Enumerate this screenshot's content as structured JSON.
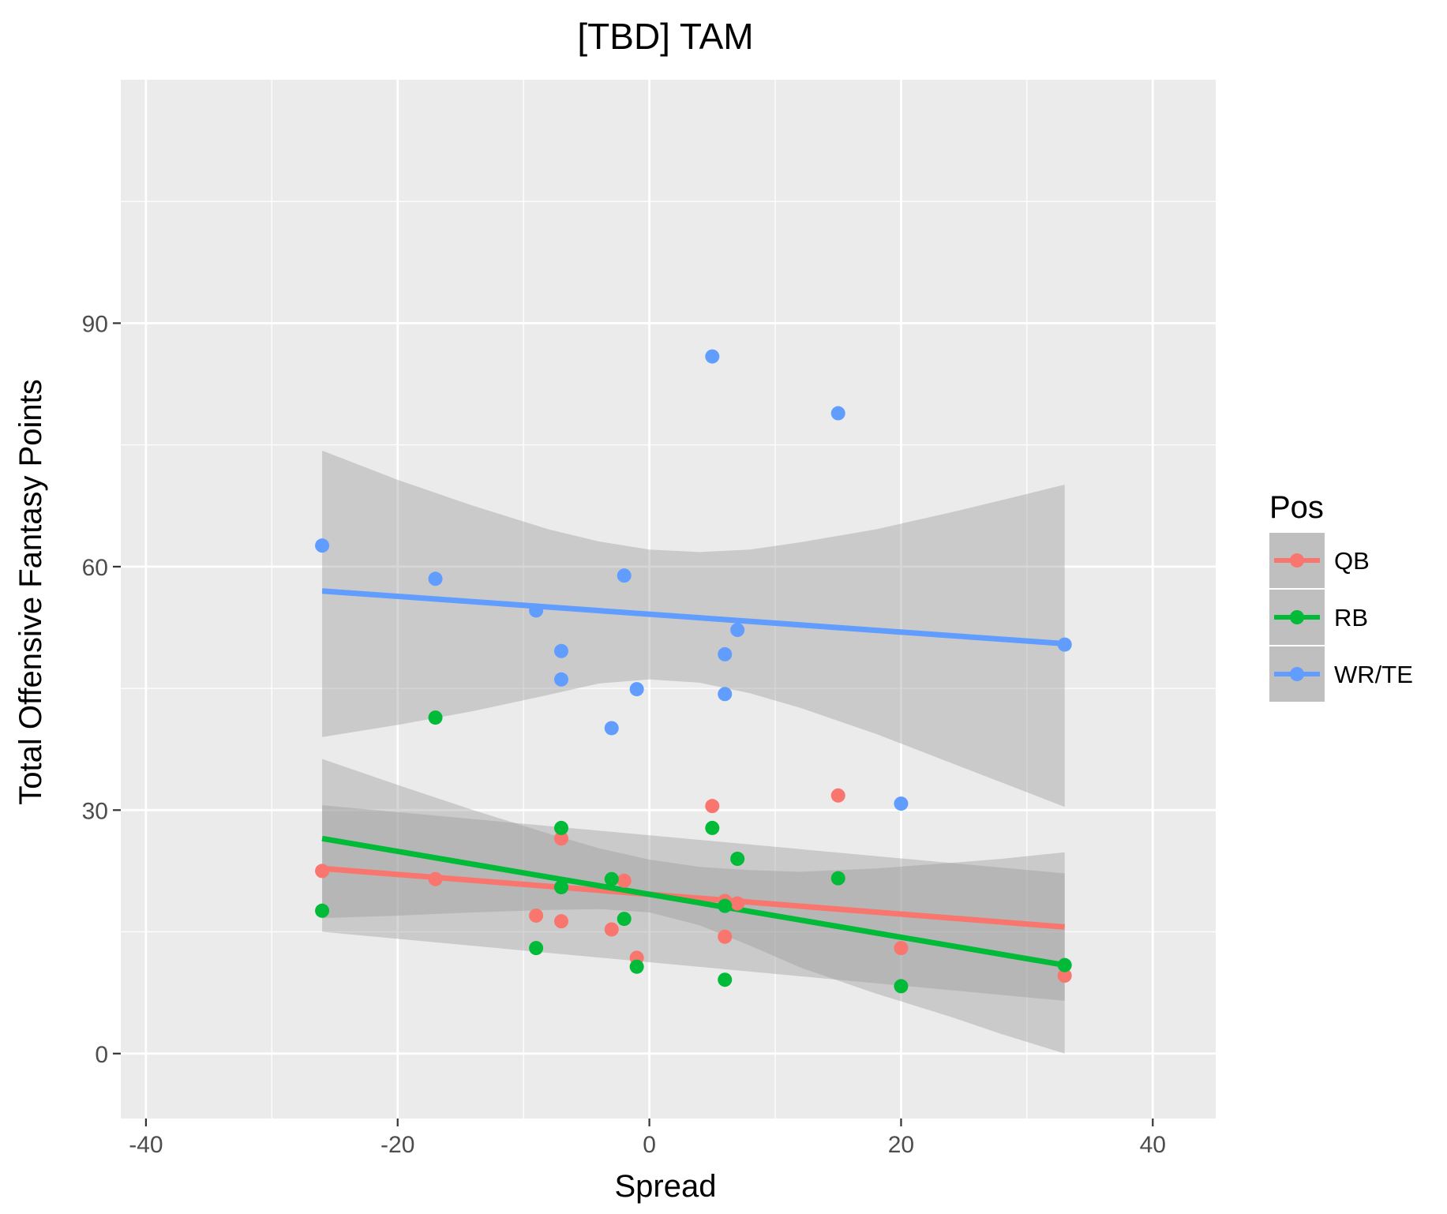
{
  "chart_data": {
    "type": "scatter",
    "title": "[TBD] TAM",
    "xlabel": "Spread",
    "ylabel": "Total Offensive Fantasy Points",
    "xlim": [
      -42,
      45
    ],
    "ylim": [
      -8,
      120
    ],
    "x_ticks": [
      -40,
      -20,
      0,
      20,
      40
    ],
    "x_minor": [
      -30,
      -10,
      10,
      30
    ],
    "y_ticks": [
      0,
      30,
      60,
      90
    ],
    "y_minor": [
      15,
      45,
      75,
      105
    ],
    "grid": true,
    "legend": {
      "title": "Pos",
      "position": "right",
      "entries": [
        "QB",
        "RB",
        "WR/TE"
      ]
    },
    "series": [
      {
        "name": "QB",
        "color": "#F8766D",
        "points": [
          [
            -26,
            22.5
          ],
          [
            -17,
            21.5
          ],
          [
            -9,
            17
          ],
          [
            -7,
            26.5
          ],
          [
            -7,
            16.3
          ],
          [
            -3,
            15.3
          ],
          [
            -2,
            21.3
          ],
          [
            -1,
            11.8
          ],
          [
            5,
            30.5
          ],
          [
            6,
            18.8
          ],
          [
            6,
            14.4
          ],
          [
            7,
            18.5
          ],
          [
            15,
            31.8
          ],
          [
            20,
            13
          ],
          [
            33,
            9.6
          ]
        ],
        "fit": {
          "x": [
            -26,
            33
          ],
          "y": [
            22.8,
            15.6
          ]
        },
        "band": {
          "x": [
            -26,
            33
          ],
          "upper": [
            30.6,
            22.2
          ],
          "lower": [
            15.0,
            6.5
          ]
        }
      },
      {
        "name": "RB",
        "color": "#00BA38",
        "points": [
          [
            -26,
            17.6
          ],
          [
            -17,
            41.4
          ],
          [
            -9,
            13
          ],
          [
            -7,
            27.8
          ],
          [
            -7,
            20.5
          ],
          [
            -3,
            21.5
          ],
          [
            -2,
            16.6
          ],
          [
            -1,
            10.7
          ],
          [
            5,
            27.8
          ],
          [
            6,
            9.1
          ],
          [
            6,
            18.2
          ],
          [
            7,
            24
          ],
          [
            15,
            21.6
          ],
          [
            20,
            8.3
          ],
          [
            33,
            10.9
          ]
        ],
        "fit": {
          "x": [
            -26,
            33
          ],
          "y": [
            26.5,
            10.9
          ]
        },
        "band": {
          "x": [
            -26,
            -20,
            -14,
            -8,
            -4,
            0,
            4,
            8,
            12,
            18,
            24,
            28,
            33
          ],
          "upper": [
            36.3,
            33.1,
            30.0,
            27.1,
            25.3,
            23.9,
            23.0,
            22.6,
            22.4,
            22.8,
            23.5,
            24.0,
            24.8
          ],
          "lower": [
            16.7,
            17.0,
            17.4,
            17.7,
            17.8,
            17.4,
            15.8,
            13.3,
            10.6,
            7.4,
            4.5,
            2.4,
            0
          ]
        }
      },
      {
        "name": "WR/TE",
        "color": "#619CFF",
        "points": [
          [
            -26,
            62.6
          ],
          [
            -17,
            58.5
          ],
          [
            -9,
            54.6
          ],
          [
            -7,
            49.6
          ],
          [
            -7,
            46.1
          ],
          [
            -3,
            40.1
          ],
          [
            -2,
            58.9
          ],
          [
            -1,
            44.9
          ],
          [
            5,
            85.9
          ],
          [
            6,
            44.3
          ],
          [
            6,
            49.2
          ],
          [
            7,
            52.2
          ],
          [
            15,
            78.9
          ],
          [
            20,
            30.8
          ],
          [
            33,
            50.4
          ]
        ],
        "fit": {
          "x": [
            -26,
            33
          ],
          "y": [
            57,
            50.5
          ]
        },
        "band": {
          "x": [
            -26,
            -20,
            -14,
            -8,
            -4,
            0,
            4,
            8,
            12,
            18,
            24,
            28,
            33
          ],
          "upper": [
            74.3,
            70.7,
            67.5,
            64.6,
            63.1,
            62.1,
            61.8,
            62.1,
            63.0,
            64.6,
            66.7,
            68.2,
            70.1
          ],
          "lower": [
            39.0,
            40.5,
            42.2,
            44.2,
            45.6,
            46.1,
            45.7,
            44.4,
            42.6,
            39.4,
            35.8,
            33.4,
            30.4
          ]
        }
      }
    ]
  }
}
